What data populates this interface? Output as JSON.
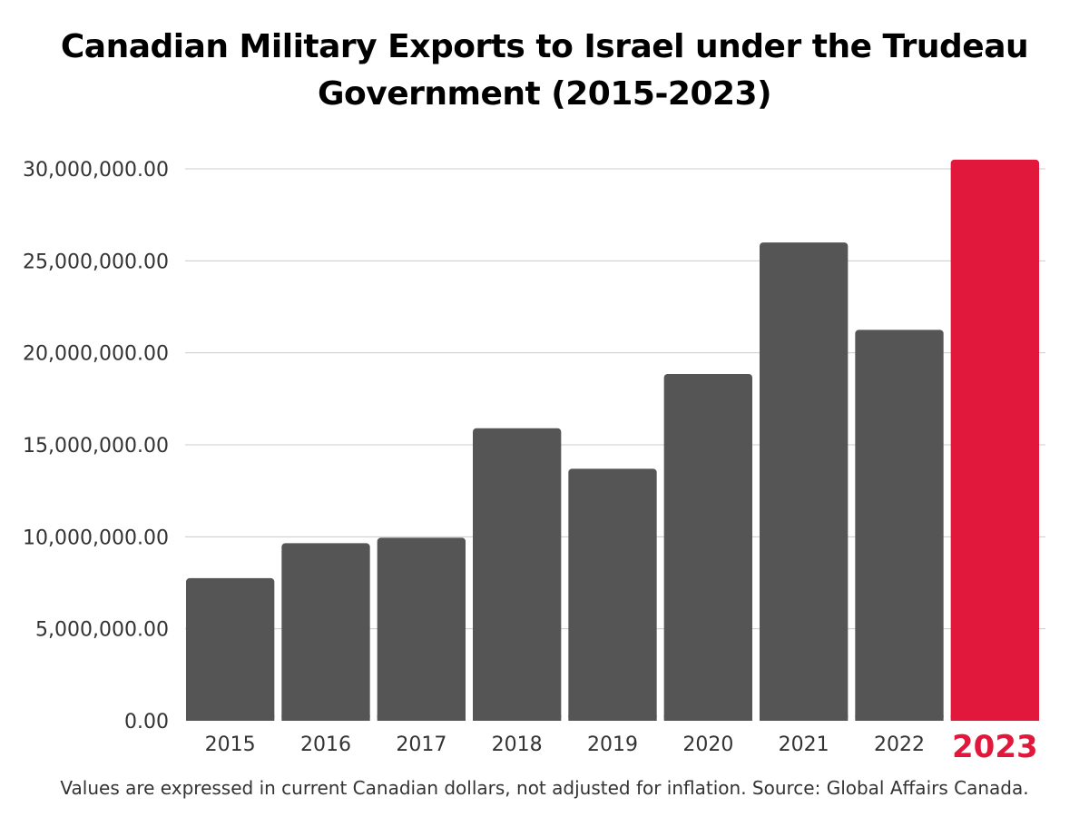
{
  "chart_data": {
    "type": "bar",
    "title": "Canadian Military Exports to Israel under the Trudeau Government (2015-2023)",
    "footnote": "Values are expressed in current Canadian dollars, not adjusted for inflation. Source: Global Affairs Canada.",
    "categories": [
      "2015",
      "2016",
      "2017",
      "2018",
      "2019",
      "2020",
      "2021",
      "2022",
      "2023"
    ],
    "values": [
      7750000,
      9650000,
      9950000,
      15900000,
      13700000,
      18850000,
      26000000,
      21250000,
      30500000
    ],
    "y_ticks": [
      "0.00",
      "5,000,000.00",
      "10,000,000.00",
      "15,000,000.00",
      "20,000,000.00",
      "25,000,000.00",
      "30,000,000.00"
    ],
    "ylim": [
      0,
      30000000
    ],
    "grid": true,
    "highlight_category": "2023",
    "colors": {
      "bar": "#555555",
      "highlight": "#e2173c",
      "grid": "#cccccc",
      "axis_text": "#333333"
    }
  }
}
